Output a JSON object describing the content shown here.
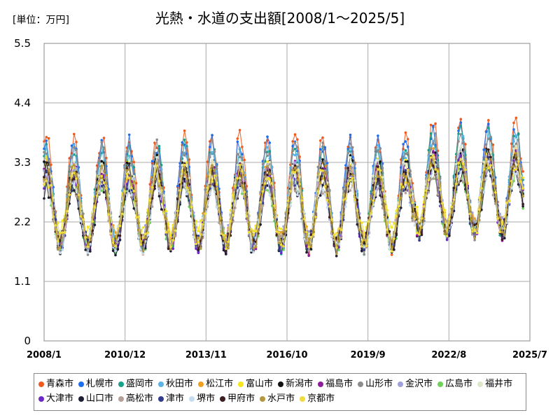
{
  "chart_data": {
    "type": "line",
    "title": "光熱・水道の支出額[2008/1～2025/5]",
    "unit_label": "[単位：万円]",
    "xlabel": "",
    "ylabel": "",
    "x_ticks": [
      "2008/1",
      "2010/12",
      "2013/11",
      "2016/10",
      "2019/9",
      "2022/8",
      "2025/7"
    ],
    "y_ticks": [
      "0",
      "1.1",
      "2.2",
      "3.3",
      "4.4",
      "5.5"
    ],
    "ylim": [
      0,
      5.5
    ],
    "grid": true,
    "legend_position": "bottom",
    "start_year": 2008,
    "months": 209,
    "series": [
      {
        "name": "青森市",
        "color": "#f05a1e",
        "base": 2.75,
        "amp": 1.1
      },
      {
        "name": "札幌市",
        "color": "#1e6ef0",
        "base": 2.7,
        "amp": 1.05
      },
      {
        "name": "盛岡市",
        "color": "#1aa08a",
        "base": 2.65,
        "amp": 1.0
      },
      {
        "name": "秋田市",
        "color": "#5ab4e6",
        "base": 2.62,
        "amp": 0.95
      },
      {
        "name": "松江市",
        "color": "#f0a01e",
        "base": 2.55,
        "amp": 0.75
      },
      {
        "name": "富山市",
        "color": "#f5e61e",
        "base": 2.6,
        "amp": 0.7
      },
      {
        "name": "新潟市",
        "color": "#111111",
        "base": 2.5,
        "amp": 0.85
      },
      {
        "name": "福島市",
        "color": "#8c1e9a",
        "base": 2.45,
        "amp": 0.8
      },
      {
        "name": "山形市",
        "color": "#8c8c8c",
        "base": 2.65,
        "amp": 1.0
      },
      {
        "name": "金沢市",
        "color": "#a0a0dc",
        "base": 2.55,
        "amp": 0.75
      },
      {
        "name": "広島市",
        "color": "#6ed25a",
        "base": 2.35,
        "amp": 0.65
      },
      {
        "name": "福井市",
        "color": "#dce6c8",
        "base": 2.55,
        "amp": 0.75
      },
      {
        "name": "大津市",
        "color": "#6e28c8",
        "base": 2.4,
        "amp": 0.7
      },
      {
        "name": "山口市",
        "color": "#1e1e32",
        "base": 2.3,
        "amp": 0.65
      },
      {
        "name": "高松市",
        "color": "#b4a096",
        "base": 2.35,
        "amp": 0.6
      },
      {
        "name": "津市",
        "color": "#323c8c",
        "base": 2.4,
        "amp": 0.7
      },
      {
        "name": "堺市",
        "color": "#c8dcf0",
        "base": 2.35,
        "amp": 0.65
      },
      {
        "name": "甲府市",
        "color": "#3c1e1e",
        "base": 2.45,
        "amp": 0.75
      },
      {
        "name": "水戸市",
        "color": "#b4963c",
        "base": 2.45,
        "amp": 0.75
      },
      {
        "name": "京都市",
        "color": "#f0dc3c",
        "base": 2.45,
        "amp": 0.7
      }
    ]
  }
}
